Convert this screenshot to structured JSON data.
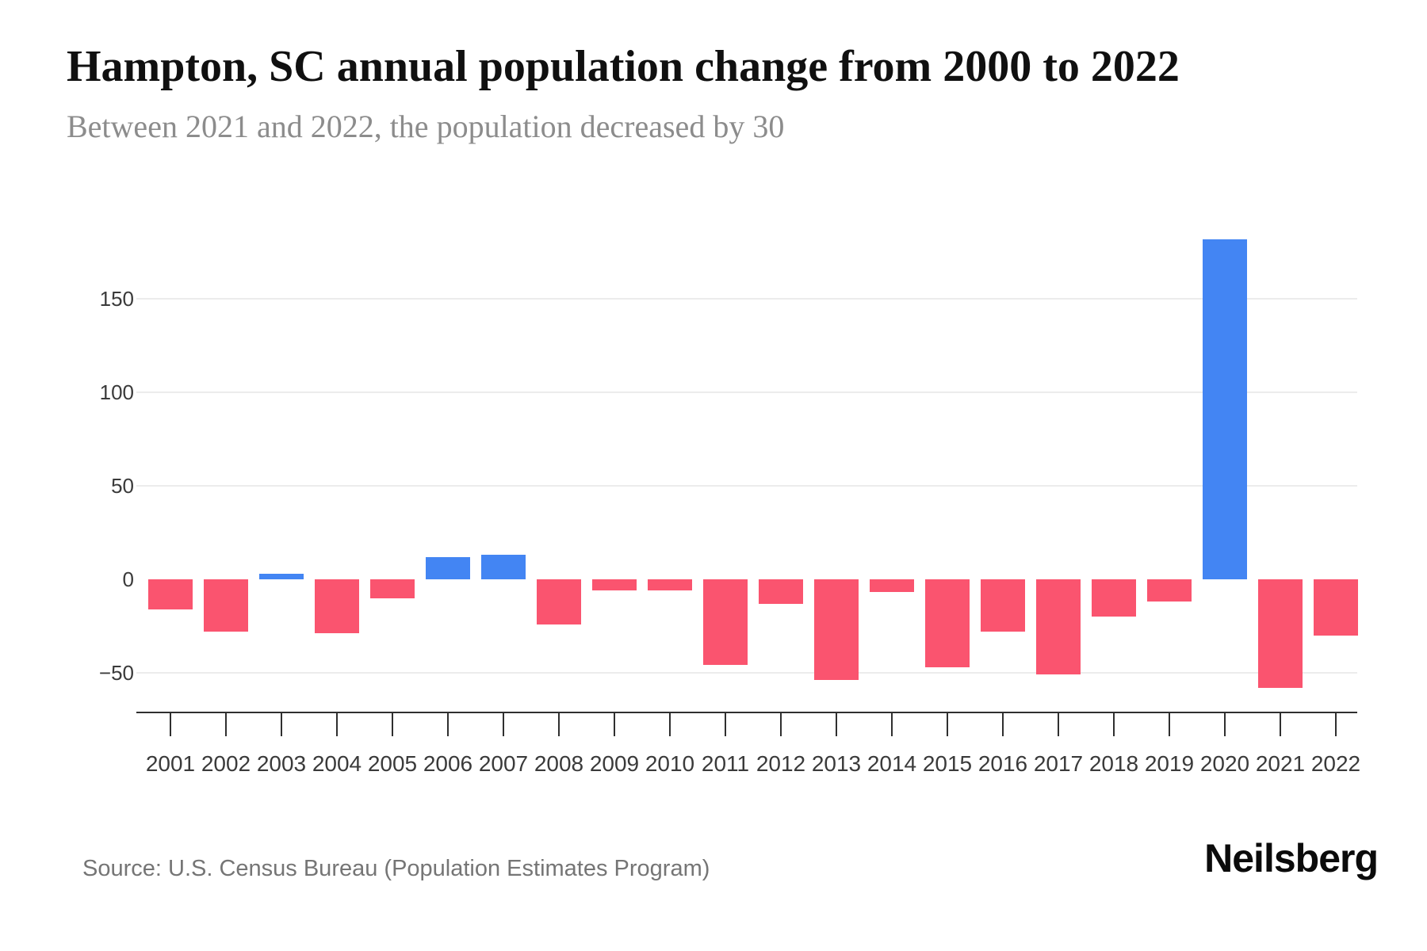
{
  "header": {
    "title": "Hampton, SC annual population change from 2000 to 2022",
    "subtitle": "Between 2021 and 2022, the population decreased by 30"
  },
  "chart_data": {
    "type": "bar",
    "title": "Hampton, SC annual population change from 2000 to 2022",
    "subtitle": "Between 2021 and 2022, the population decreased by 30",
    "categories": [
      "2001",
      "2002",
      "2003",
      "2004",
      "2005",
      "2006",
      "2007",
      "2008",
      "2009",
      "2010",
      "2011",
      "2012",
      "2013",
      "2014",
      "2015",
      "2016",
      "2017",
      "2018",
      "2019",
      "2020",
      "2021",
      "2022"
    ],
    "values": [
      -16,
      -28,
      3,
      -29,
      -10,
      12,
      13,
      -24,
      -6,
      -6,
      -46,
      -13,
      -54,
      -7,
      -47,
      -28,
      -51,
      -20,
      -12,
      182,
      -58,
      -30
    ],
    "xlabel": "",
    "ylabel": "",
    "ylim": [
      -70,
      208
    ],
    "ytick_values": [
      150,
      100,
      50,
      0,
      -50
    ],
    "ytick_labels": [
      "150",
      "100",
      "50",
      "0",
      "−50"
    ],
    "gridline_values": [
      150,
      100,
      50,
      -50
    ],
    "grid": "horizontal",
    "legend": "none",
    "bar_color_rule": "positive values blue, negative values pink"
  },
  "colors": {
    "positive": "#4385f3",
    "negative": "#fa546f",
    "grid": "#ececec",
    "axis": "#2f2f2f",
    "tick_label": "#3a3a3a",
    "title": "#101010",
    "subtitle": "#8c8c8c",
    "source": "#757575",
    "brand": "#0b0b0b"
  },
  "footer": {
    "source": "Source: U.S. Census Bureau (Population Estimates Program)",
    "brand": "Neilsberg"
  }
}
